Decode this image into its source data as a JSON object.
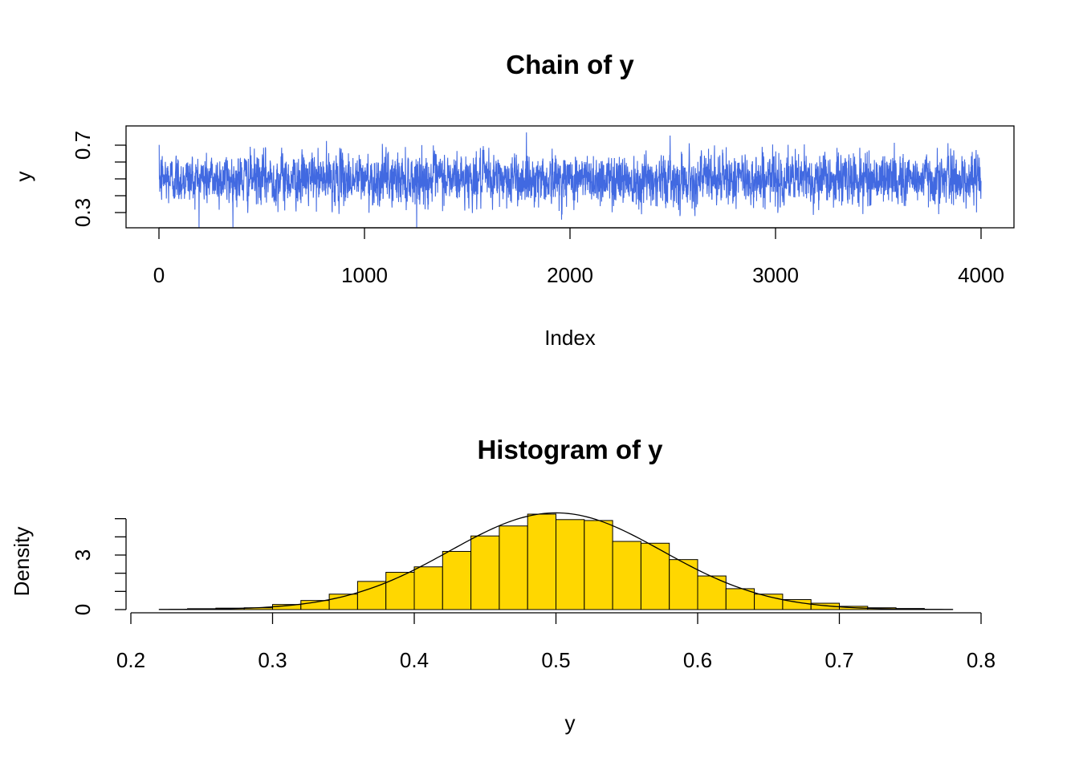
{
  "chart_data": [
    {
      "type": "line",
      "title": "Chain of y",
      "xlabel": "Index",
      "ylabel": "y",
      "xlim": [
        0,
        4000
      ],
      "ylim": [
        0.22,
        0.78
      ],
      "x_ticks": [
        "0",
        "1000",
        "2000",
        "3000",
        "4000"
      ],
      "y_ticks": [
        "0.3",
        "0.7"
      ],
      "y_minor_ticks": [
        0.3,
        0.4,
        0.5,
        0.6,
        0.7
      ],
      "color": "#4169e1",
      "series": [
        {
          "n": 4000,
          "mean": 0.5,
          "sd": 0.075,
          "min": 0.21,
          "max": 0.78
        }
      ]
    },
    {
      "type": "bar",
      "title": "Histogram of y",
      "xlabel": "y",
      "ylabel": "Density",
      "xlim": [
        0.2,
        0.8
      ],
      "ylim": [
        0,
        5.3
      ],
      "x_ticks": [
        "0.2",
        "0.3",
        "0.4",
        "0.5",
        "0.6",
        "0.7",
        "0.8"
      ],
      "y_ticks": [
        "0",
        "3"
      ],
      "y_minor_ticks": [
        0,
        1,
        2,
        3,
        4,
        5
      ],
      "bar_color": "#ffd700",
      "bins": [
        {
          "from": 0.22,
          "to": 0.24,
          "density": 0.01
        },
        {
          "from": 0.24,
          "to": 0.26,
          "density": 0.05
        },
        {
          "from": 0.26,
          "to": 0.28,
          "density": 0.08
        },
        {
          "from": 0.28,
          "to": 0.3,
          "density": 0.1
        },
        {
          "from": 0.3,
          "to": 0.32,
          "density": 0.28
        },
        {
          "from": 0.32,
          "to": 0.34,
          "density": 0.5
        },
        {
          "from": 0.34,
          "to": 0.36,
          "density": 0.85
        },
        {
          "from": 0.36,
          "to": 0.38,
          "density": 1.55
        },
        {
          "from": 0.38,
          "to": 0.4,
          "density": 2.05
        },
        {
          "from": 0.4,
          "to": 0.42,
          "density": 2.35
        },
        {
          "from": 0.42,
          "to": 0.44,
          "density": 3.2
        },
        {
          "from": 0.44,
          "to": 0.46,
          "density": 4.05
        },
        {
          "from": 0.46,
          "to": 0.48,
          "density": 4.6
        },
        {
          "from": 0.48,
          "to": 0.5,
          "density": 5.25
        },
        {
          "from": 0.5,
          "to": 0.52,
          "density": 4.95
        },
        {
          "from": 0.52,
          "to": 0.54,
          "density": 4.9
        },
        {
          "from": 0.54,
          "to": 0.56,
          "density": 3.75
        },
        {
          "from": 0.56,
          "to": 0.58,
          "density": 3.65
        },
        {
          "from": 0.58,
          "to": 0.6,
          "density": 2.75
        },
        {
          "from": 0.6,
          "to": 0.62,
          "density": 1.85
        },
        {
          "from": 0.62,
          "to": 0.64,
          "density": 1.15
        },
        {
          "from": 0.64,
          "to": 0.66,
          "density": 0.85
        },
        {
          "from": 0.66,
          "to": 0.68,
          "density": 0.55
        },
        {
          "from": 0.68,
          "to": 0.7,
          "density": 0.35
        },
        {
          "from": 0.7,
          "to": 0.72,
          "density": 0.18
        },
        {
          "from": 0.72,
          "to": 0.74,
          "density": 0.1
        },
        {
          "from": 0.74,
          "to": 0.76,
          "density": 0.06
        },
        {
          "from": 0.76,
          "to": 0.78,
          "density": 0.01
        }
      ],
      "density_curve": {
        "mean": 0.5,
        "sd": 0.075,
        "from": 0.22,
        "to": 0.78
      }
    }
  ]
}
